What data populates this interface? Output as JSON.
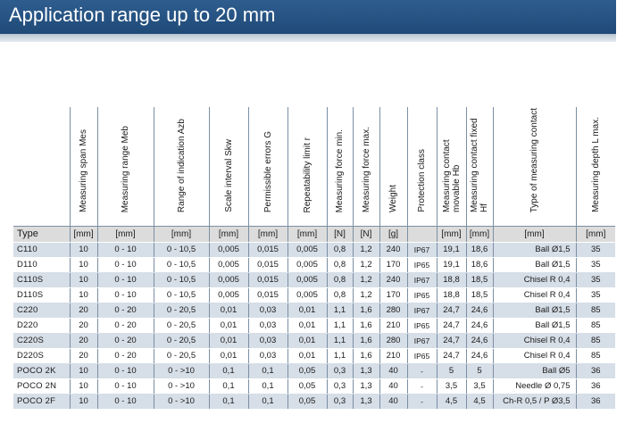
{
  "title": "Application range up to 20 mm",
  "headers": [
    "Measuring span Mes",
    "Measuring range Meb",
    "Range of indication Azb",
    "Scale interval Skw",
    "Permissible errors G",
    "Repeatability limit r",
    "Measuring force min.",
    "Measuring force max.",
    "Weight",
    "Protection class",
    "Measuring contact movable Hb",
    "Measuring contact fixed Hf",
    "Type of measuring contact",
    "Measuring depth L max."
  ],
  "type_label": "Type",
  "units": [
    "[mm]",
    "[mm]",
    "[mm]",
    "[mm]",
    "[mm]",
    "[mm]",
    "[N]",
    "[N]",
    "[g]",
    "",
    "[mm]",
    "[mm]",
    "[mm]",
    "[mm]"
  ],
  "rows": [
    [
      "C110",
      "10",
      "0 - 10",
      "0 - 10,5",
      "0,005",
      "0,015",
      "0,005",
      "0,8",
      "1,2",
      "240",
      "IP67",
      "19,1",
      "18,6",
      "Ball Ø1,5",
      "35"
    ],
    [
      "D110",
      "10",
      "0 - 10",
      "0 - 10,5",
      "0,005",
      "0,015",
      "0,005",
      "0,8",
      "1,2",
      "170",
      "IP65",
      "19,1",
      "18,6",
      "Ball Ø1,5",
      "35"
    ],
    [
      "C110S",
      "10",
      "0 - 10",
      "0 - 10,5",
      "0,005",
      "0,015",
      "0,005",
      "0,8",
      "1,2",
      "240",
      "IP67",
      "18,8",
      "18,5",
      "Chisel R 0,4",
      "35"
    ],
    [
      "D110S",
      "10",
      "0 - 10",
      "0 - 10,5",
      "0,005",
      "0,015",
      "0,005",
      "0,8",
      "1,2",
      "170",
      "IP65",
      "18,8",
      "18,5",
      "Chisel R 0,4",
      "35"
    ],
    [
      "C220",
      "20",
      "0 - 20",
      "0 - 20,5",
      "0,01",
      "0,03",
      "0,01",
      "1,1",
      "1,6",
      "280",
      "IP67",
      "24,7",
      "24,6",
      "Ball Ø1,5",
      "85"
    ],
    [
      "D220",
      "20",
      "0 - 20",
      "0 - 20,5",
      "0,01",
      "0,03",
      "0,01",
      "1,1",
      "1,6",
      "210",
      "IP65",
      "24,7",
      "24,6",
      "Ball Ø1,5",
      "85"
    ],
    [
      "C220S",
      "20",
      "0 - 20",
      "0 - 20,5",
      "0,01",
      "0,03",
      "0,01",
      "1,1",
      "1,6",
      "280",
      "IP67",
      "24,7",
      "24,6",
      "Chisel R 0,4",
      "85"
    ],
    [
      "D220S",
      "20",
      "0 - 20",
      "0 - 20,5",
      "0,01",
      "0,03",
      "0,01",
      "1,1",
      "1,6",
      "210",
      "IP65",
      "24,7",
      "24,6",
      "Chisel R 0,4",
      "85"
    ],
    [
      "POCO 2K",
      "10",
      "0 - 10",
      "0 - >10",
      "0,1",
      "0,1",
      "0,05",
      "0,3",
      "1,3",
      "40",
      "-",
      "5",
      "5",
      "Ball Ø5",
      "36"
    ],
    [
      "POCO 2N",
      "10",
      "0 - 10",
      "0 - >10",
      "0,1",
      "0,1",
      "0,05",
      "0,3",
      "1,3",
      "40",
      "-",
      "3,5",
      "3,5",
      "Needle Ø 0,75",
      "36"
    ],
    [
      "POCO 2F",
      "10",
      "0 - 10",
      "0 - >10",
      "0,1",
      "0,1",
      "0,05",
      "0,3",
      "1,3",
      "40",
      "-",
      "4,5",
      "4,5",
      "Ch-R 0,5 / P Ø3,5",
      "36"
    ]
  ],
  "colors": {
    "banner": "#2e5d8e",
    "row_odd": "#d6dee7",
    "units_row": "#dcdcdc"
  }
}
